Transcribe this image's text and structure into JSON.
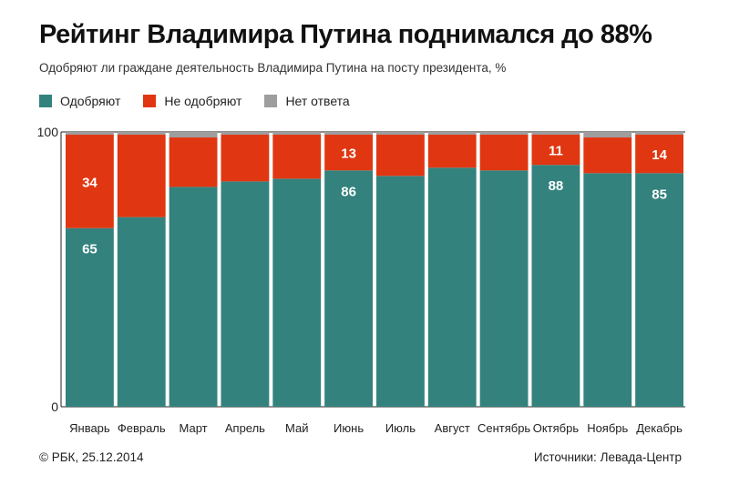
{
  "header": {
    "title": "Рейтинг Владимира Путина поднимался до 88%",
    "subtitle": "Одобряют ли граждане деятельность Владимира Путина на посту президента, %"
  },
  "legend": [
    {
      "label": "Одобряют",
      "color": "#33827d"
    },
    {
      "label": "Не одобряют",
      "color": "#e03612"
    },
    {
      "label": "Нет ответа",
      "color": "#9e9e9e"
    }
  ],
  "footer": {
    "copyright": "© РБК, 25.12.2014",
    "source_label": "Источники:",
    "source_value": "Левада-Центр"
  },
  "chart_data": {
    "type": "bar",
    "stacked": true,
    "categories": [
      "Январь",
      "Февраль",
      "Март",
      "Апрель",
      "Май",
      "Июнь",
      "Июль",
      "Август",
      "Сентябрь",
      "Октябрь",
      "Ноябрь",
      "Декабрь"
    ],
    "series": [
      {
        "name": "Одобряют",
        "color": "#33827d",
        "values": [
          65,
          69,
          80,
          82,
          83,
          86,
          84,
          87,
          86,
          88,
          85,
          85
        ]
      },
      {
        "name": "Не одобряют",
        "color": "#e03612",
        "values": [
          34,
          30,
          18,
          17,
          16,
          13,
          15,
          12,
          13,
          11,
          13,
          14
        ]
      },
      {
        "name": "Нет ответа",
        "color": "#9e9e9e",
        "values": [
          1,
          1,
          2,
          1,
          1,
          1,
          1,
          1,
          1,
          1,
          2,
          1
        ]
      }
    ],
    "data_labels": [
      {
        "series": 0,
        "index": 0,
        "text": "65"
      },
      {
        "series": 1,
        "index": 0,
        "text": "34"
      },
      {
        "series": 0,
        "index": 5,
        "text": "86"
      },
      {
        "series": 1,
        "index": 5,
        "text": "13"
      },
      {
        "series": 0,
        "index": 9,
        "text": "88"
      },
      {
        "series": 1,
        "index": 9,
        "text": "11"
      },
      {
        "series": 0,
        "index": 11,
        "text": "85"
      },
      {
        "series": 1,
        "index": 11,
        "text": "14"
      }
    ],
    "ylim": [
      0,
      100
    ],
    "yticks": [
      "0",
      "100"
    ],
    "grid": false
  }
}
